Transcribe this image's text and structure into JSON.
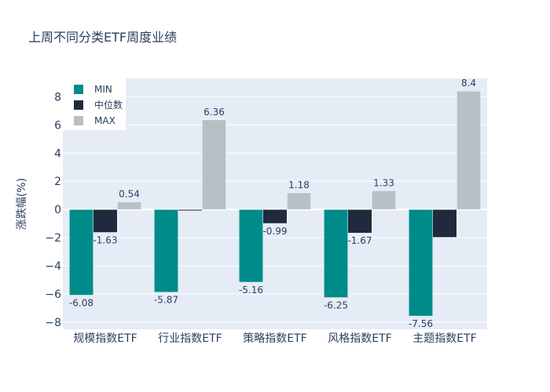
{
  "chart_data": {
    "type": "bar",
    "title": "上周不同分类ETF周度业绩",
    "xlabel": "",
    "ylabel": "涨跌幅(%)",
    "categories": [
      "规模指数ETF",
      "行业指数ETF",
      "策略指数ETF",
      "风格指数ETF",
      "主题指数ETF"
    ],
    "series": [
      {
        "name": "MIN",
        "color": "#008b8b",
        "values": [
          -6.08,
          -5.87,
          -5.16,
          -6.25,
          -7.56
        ],
        "labels": [
          "-6.08",
          "-5.87",
          "-5.16",
          "-6.25",
          "-7.56"
        ]
      },
      {
        "name": "中位数",
        "color": "#1f2a3d",
        "values": [
          -1.63,
          -0.09,
          -0.99,
          -1.67,
          -1.98
        ],
        "labels": [
          "-1.63",
          "",
          "-0.99",
          "-1.67",
          ""
        ]
      },
      {
        "name": "MAX",
        "color": "#b9bfc7",
        "values": [
          0.54,
          6.36,
          1.18,
          1.33,
          8.4
        ],
        "labels": [
          "0.54",
          "6.36",
          "1.18",
          "1.33",
          "8.4"
        ]
      }
    ],
    "ylim": [
      -8.5,
      9.3
    ],
    "yticks": [
      -8,
      -6,
      -4,
      -2,
      0,
      2,
      4,
      6,
      8
    ],
    "grid": true,
    "legend_position": "top-left",
    "plot_bg": "#e5ecf6"
  }
}
